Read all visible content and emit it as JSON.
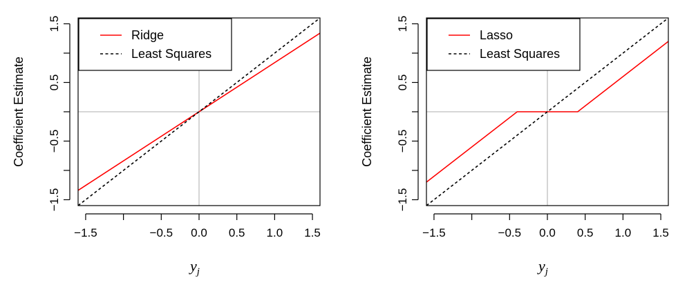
{
  "colors": {
    "estimate_line": "#ff0000",
    "least_squares_line": "#000000",
    "reference_lines": "#bebebe",
    "frame": "#000000"
  },
  "chart_data": [
    {
      "type": "line",
      "title": "",
      "xlabel": "y",
      "xlabel_subscript": "j",
      "ylabel": "Coefficient Estimate",
      "xlim": [
        -1.6,
        1.6
      ],
      "ylim": [
        -1.6,
        1.6
      ],
      "x_ticks": [
        -1.5,
        -1.0,
        -0.5,
        0.0,
        0.5,
        1.0,
        1.5
      ],
      "x_tick_labels": [
        "−1.5",
        "",
        "−0.5",
        "0.0",
        "0.5",
        "1.0",
        "1.5"
      ],
      "y_ticks": [
        -1.5,
        -1.0,
        -0.5,
        0.0,
        0.5,
        1.0,
        1.5
      ],
      "y_tick_labels": [
        "−1.5",
        "",
        "−0.5",
        "",
        "0.5",
        "",
        "1.5"
      ],
      "reference_lines": {
        "x": 0,
        "y": 0
      },
      "legend_position": "top-left",
      "series": [
        {
          "name": "Ridge",
          "style": "solid",
          "color": "#ff0000",
          "x": [
            -1.6,
            1.6
          ],
          "y": [
            -1.34,
            1.34
          ]
        },
        {
          "name": "Least Squares",
          "style": "dashed",
          "color": "#000000",
          "x": [
            -1.6,
            1.6
          ],
          "y": [
            -1.6,
            1.6
          ]
        }
      ]
    },
    {
      "type": "line",
      "title": "",
      "xlabel": "y",
      "xlabel_subscript": "j",
      "ylabel": "Coefficient Estimate",
      "xlim": [
        -1.6,
        1.6
      ],
      "ylim": [
        -1.6,
        1.6
      ],
      "x_ticks": [
        -1.5,
        -1.0,
        -0.5,
        0.0,
        0.5,
        1.0,
        1.5
      ],
      "x_tick_labels": [
        "−1.5",
        "",
        "−0.5",
        "0.0",
        "0.5",
        "1.0",
        "1.5"
      ],
      "y_ticks": [
        -1.5,
        -1.0,
        -0.5,
        0.0,
        0.5,
        1.0,
        1.5
      ],
      "y_tick_labels": [
        "−1.5",
        "",
        "−0.5",
        "",
        "0.5",
        "",
        "1.5"
      ],
      "reference_lines": {
        "x": 0,
        "y": 0
      },
      "legend_position": "top-left",
      "series": [
        {
          "name": "Lasso",
          "style": "solid",
          "color": "#ff0000",
          "x": [
            -1.6,
            -0.4,
            0.4,
            1.6
          ],
          "y": [
            -1.2,
            0.0,
            0.0,
            1.2
          ]
        },
        {
          "name": "Least Squares",
          "style": "dashed",
          "color": "#000000",
          "x": [
            -1.6,
            1.6
          ],
          "y": [
            -1.6,
            1.6
          ]
        }
      ]
    }
  ]
}
